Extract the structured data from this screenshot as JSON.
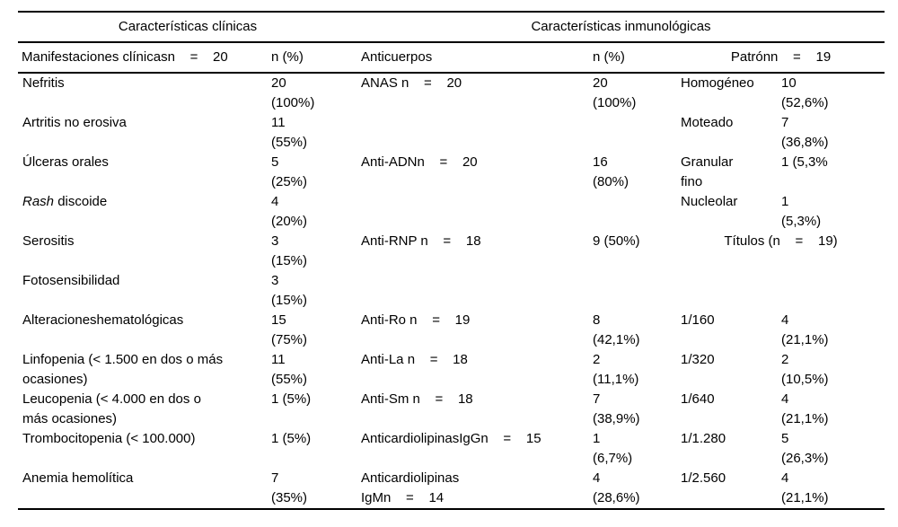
{
  "table": {
    "group_headers": [
      {
        "label": "Características clínicas",
        "span": 2
      },
      {
        "label": "Características inmunológicas",
        "span": 4
      }
    ],
    "col_headers": [
      "Manifestaciones clínicasn    =    20",
      "n (%)",
      "Anticuerpos",
      "n (%)",
      "Patrónn    =    19"
    ],
    "rows": [
      {
        "cells": [
          [
            "Nefritis"
          ],
          [
            "20",
            "(100%)"
          ],
          [
            "ANAS n    =    20"
          ],
          [
            "20",
            "(100%)"
          ],
          [
            "Homogéneo"
          ],
          [
            "10",
            "(52,6%)"
          ]
        ]
      },
      {
        "cells": [
          [
            "Artritis no erosiva"
          ],
          [
            "11",
            "(55%)"
          ],
          [],
          [],
          [
            "Moteado"
          ],
          [
            "7",
            "(36,8%)"
          ]
        ]
      },
      {
        "cells": [
          [
            "Úlceras orales"
          ],
          [
            "5",
            "(25%)"
          ],
          [
            "Anti-ADNn    =    20"
          ],
          [
            "16",
            "(80%)"
          ],
          [
            "Granular",
            "fino"
          ],
          [
            "1 (5,3%"
          ]
        ]
      },
      {
        "cells": [
          [
            [
              {
                "t": "Rash",
                "i": true
              },
              {
                "t": " discoide"
              }
            ]
          ],
          [
            "4",
            "(20%)"
          ],
          [],
          [],
          [
            "Nucleolar"
          ],
          [
            "1",
            "(5,3%)"
          ]
        ]
      },
      {
        "cells": [
          [
            "Serositis"
          ],
          [
            "3",
            "(15%)"
          ],
          [
            "Anti-RNP n    =    18"
          ],
          [
            "9 (50%)"
          ]
        ],
        "span56": "Títulos (n    =    19)"
      },
      {
        "cells": [
          [
            "Fotosensibilidad"
          ],
          [
            "3",
            "(15%)"
          ],
          [],
          [],
          [],
          []
        ]
      },
      {
        "cells": [
          [
            "Alteracioneshematológicas"
          ],
          [
            "15",
            "(75%)"
          ],
          [
            "Anti-Ro n    =    19"
          ],
          [
            "8",
            "(42,1%)"
          ],
          [
            "1/160"
          ],
          [
            "4",
            "(21,1%)"
          ]
        ]
      },
      {
        "cells": [
          [
            "Linfopenia (< 1.500 en dos o más",
            "ocasiones)"
          ],
          [
            "11",
            "(55%)"
          ],
          [
            "Anti-La n    =    18"
          ],
          [
            "2",
            "(11,1%)"
          ],
          [
            "1/320"
          ],
          [
            "2",
            "(10,5%)"
          ]
        ]
      },
      {
        "cells": [
          [
            "Leucopenia (< 4.000 en dos o",
            "más ocasiones)"
          ],
          [
            "1 (5%)"
          ],
          [
            "Anti-Sm n    =    18"
          ],
          [
            "7",
            "(38,9%)"
          ],
          [
            "1/640"
          ],
          [
            "4",
            "(21,1%)"
          ]
        ]
      },
      {
        "cells": [
          [
            "Trombocitopenia (< 100.000)"
          ],
          [
            "1 (5%)"
          ],
          [
            "AnticardiolipinasIgGn    =    15"
          ],
          [
            "1",
            "(6,7%)"
          ],
          [
            "1/1.280"
          ],
          [
            "5",
            "(26,3%)"
          ]
        ]
      },
      {
        "cells": [
          [
            "Anemia hemolítica"
          ],
          [
            "7",
            "(35%)"
          ],
          [
            "Anticardiolipinas",
            "IgMn    =    14"
          ],
          [
            "4",
            "(28,6%)"
          ],
          [
            "1/2.560"
          ],
          [
            "4",
            "(21,1%)"
          ]
        ]
      }
    ]
  }
}
